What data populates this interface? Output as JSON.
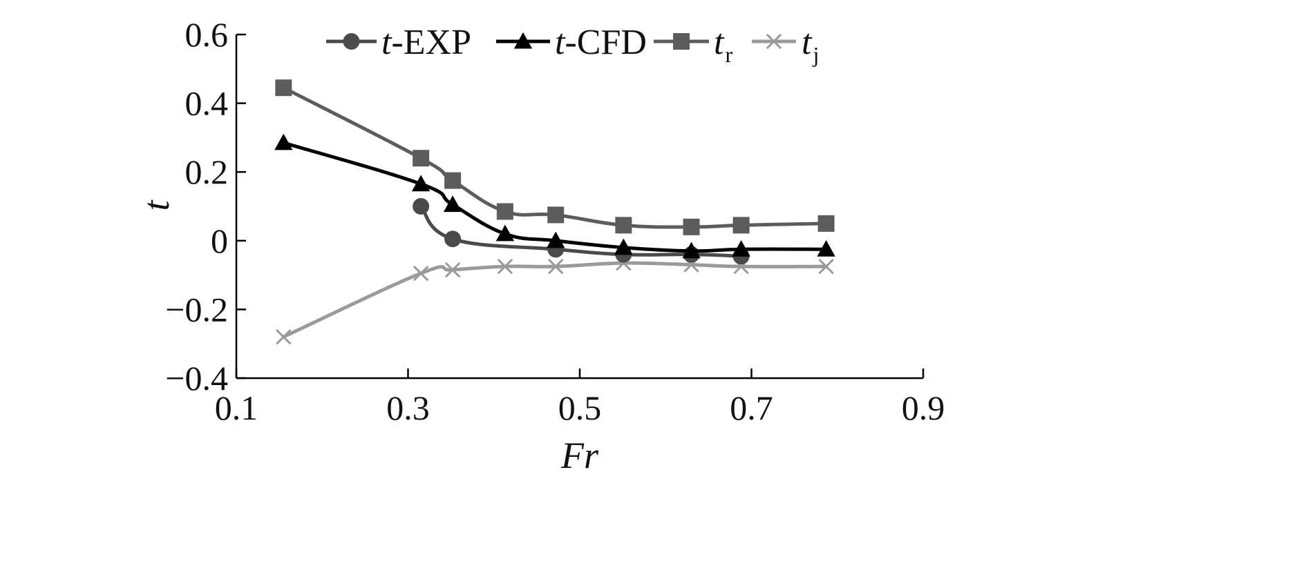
{
  "chart_data": {
    "type": "line",
    "title": "",
    "xlabel": "Fr",
    "ylabel": "t",
    "xlim": [
      0.1,
      0.9
    ],
    "ylim": [
      -0.4,
      0.6
    ],
    "xticks": [
      0.1,
      0.3,
      0.5,
      0.7,
      0.9
    ],
    "yticks": [
      -0.4,
      -0.2,
      0,
      0.2,
      0.4,
      0.6
    ],
    "xtick_labels": [
      "0.1",
      "0.3",
      "0.5",
      "0.7",
      "0.9"
    ],
    "ytick_labels": [
      "−0.4",
      "−0.2",
      "0",
      "0.2",
      "0.4",
      "0.6"
    ],
    "grid": false,
    "legend_position": "top",
    "series": [
      {
        "key": "t-exp",
        "name": "t-EXP",
        "legend_main": "t",
        "legend_rest": "-EXP",
        "legend_sub": "",
        "marker": "circle",
        "color": "#4a4a4a",
        "x": [
          0.315,
          0.352,
          0.472,
          0.551,
          0.63,
          0.688
        ],
        "y": [
          0.1,
          0.005,
          -0.025,
          -0.04,
          -0.04,
          -0.045
        ]
      },
      {
        "key": "t-cfd",
        "name": "t-CFD",
        "legend_main": "t",
        "legend_rest": "-CFD",
        "legend_sub": "",
        "marker": "triangle",
        "color": "#000000",
        "x": [
          0.155,
          0.315,
          0.352,
          0.413,
          0.472,
          0.551,
          0.63,
          0.688,
          0.787
        ],
        "y": [
          0.285,
          0.165,
          0.105,
          0.02,
          0.0,
          -0.02,
          -0.03,
          -0.025,
          -0.025
        ]
      },
      {
        "key": "t-r",
        "name": "tr",
        "legend_main": "t",
        "legend_rest": "",
        "legend_sub": "r",
        "marker": "square",
        "color": "#5c5c5c",
        "x": [
          0.155,
          0.315,
          0.352,
          0.413,
          0.472,
          0.551,
          0.63,
          0.688,
          0.787
        ],
        "y": [
          0.445,
          0.24,
          0.175,
          0.085,
          0.075,
          0.045,
          0.04,
          0.045,
          0.05
        ]
      },
      {
        "key": "t-j",
        "name": "tj",
        "legend_main": "t",
        "legend_rest": "",
        "legend_sub": "j",
        "marker": "x",
        "color": "#9a9a9a",
        "x": [
          0.155,
          0.315,
          0.352,
          0.413,
          0.472,
          0.551,
          0.63,
          0.688,
          0.787
        ],
        "y": [
          -0.28,
          -0.095,
          -0.085,
          -0.075,
          -0.075,
          -0.065,
          -0.07,
          -0.075,
          -0.075
        ]
      }
    ]
  }
}
